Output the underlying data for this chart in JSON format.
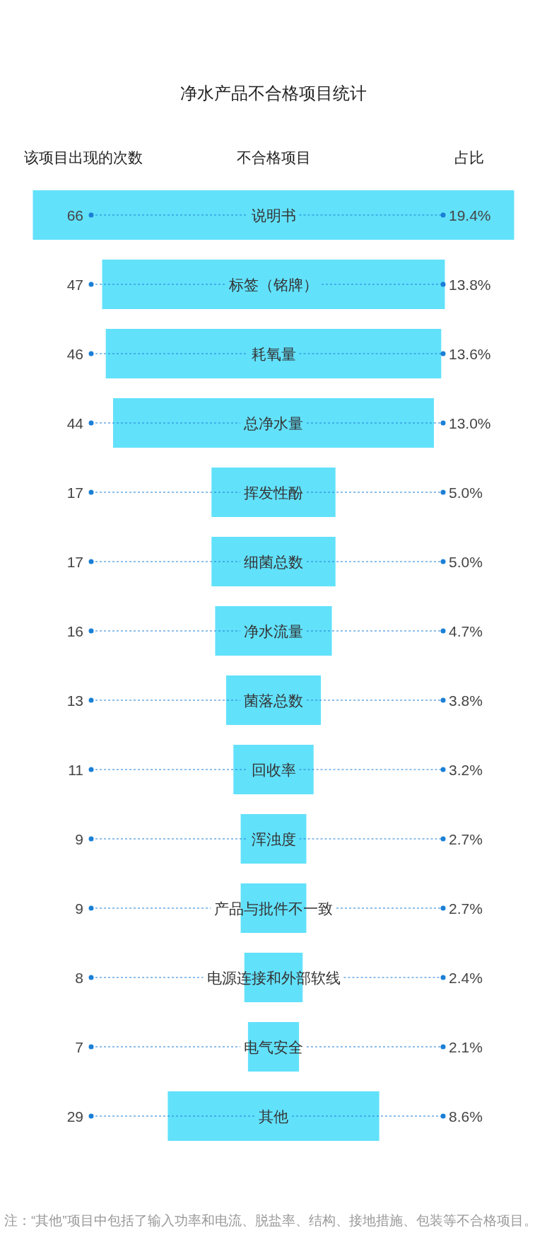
{
  "chart_data": {
    "type": "other",
    "title": "净水产品不合格项目统计",
    "ylabel": "不合格项目",
    "data_labels": true,
    "categories": [
      "说明书",
      "标签（铭牌）",
      "耗氧量",
      "总净水量",
      "挥发性酚",
      "细菌总数",
      "净水流量",
      "菌落总数",
      "回收率",
      "浑浊度",
      "产品与批件不一致",
      "电源连接和外部软线",
      "电气安全",
      "其他"
    ],
    "series": [
      {
        "name": "该项目出现的次数",
        "color": "#62e1fb",
        "values": [
          66,
          47,
          46,
          44,
          17,
          17,
          16,
          13,
          11,
          9,
          9,
          8,
          7,
          29
        ]
      },
      {
        "name": "占比",
        "values": [
          19.4,
          13.8,
          13.6,
          13.0,
          5.0,
          5.0,
          4.7,
          3.8,
          3.2,
          2.7,
          2.7,
          2.4,
          2.1,
          8.6
        ],
        "value_labels": [
          "19.4%",
          "13.8%",
          "13.6%",
          "13.0%",
          "5.0%",
          "5.0%",
          "4.7%",
          "3.8%",
          "3.2%",
          "2.7%",
          "2.7%",
          "2.4%",
          "2.1%",
          "8.6%"
        ]
      }
    ],
    "annotations": [
      "注：“其他”项目中包括了输入功率和电流、脱盐率、结构、接地措施、包装等不合格项目。"
    ]
  }
}
